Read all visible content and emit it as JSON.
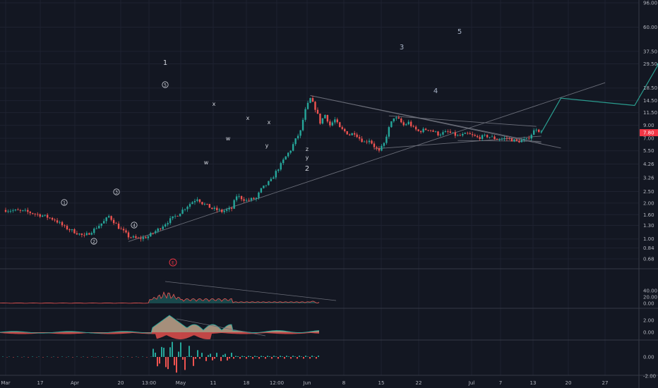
{
  "chart_data": {
    "type": "candlestick",
    "symbol_scale": "log",
    "price_axis": {
      "ticks": [
        "96.00",
        "60.00",
        "37.50",
        "29.50",
        "18.50",
        "14.50",
        "11.50",
        "9.00",
        "7.00",
        "5.50",
        "4.26",
        "3.26",
        "2.50",
        "2.00",
        "1.60",
        "1.30",
        "1.00",
        "0.84",
        "0.68"
      ],
      "current_price": "7.80",
      "current_price_color": "#f23645"
    },
    "time_axis": {
      "ticks": [
        "Mar",
        "17",
        "Apr",
        "20",
        "13:00",
        "May",
        "11",
        "18",
        "12:00",
        "Jun",
        "8",
        "15",
        "22",
        "Jul",
        "7",
        "13",
        "20",
        "27"
      ]
    },
    "candles": {
      "description": "daily price bars from early March to early June",
      "up_color": "#26a69a",
      "down_color": "#ef5350",
      "key_prices": {
        "start": 1.75,
        "march_low": 0.98,
        "wave1_peak": 15.5,
        "wave2_low_w": 5.3,
        "current": 7.8
      }
    },
    "wave_labels": {
      "minor": [
        "1",
        "2",
        "3",
        "4",
        "5"
      ],
      "correction": [
        "x",
        "w",
        "x",
        "x",
        "w",
        "y",
        "z",
        "y"
      ],
      "major": [
        "1",
        "2",
        "3",
        "4",
        "5"
      ],
      "indicator_marker": "E"
    },
    "projection": {
      "color": "#2a9d8f",
      "path_prices": [
        7.8,
        15.2,
        13.2,
        30.0
      ]
    },
    "panels": [
      {
        "name": "volume-oscillator",
        "ticks": [
          "40.00",
          "20.00",
          "0.00"
        ]
      },
      {
        "name": "momentum",
        "ticks": [
          "2.00",
          "0.00"
        ]
      },
      {
        "name": "histogram",
        "ticks": [
          "0.00",
          "-2.00"
        ]
      }
    ],
    "grid": true
  }
}
